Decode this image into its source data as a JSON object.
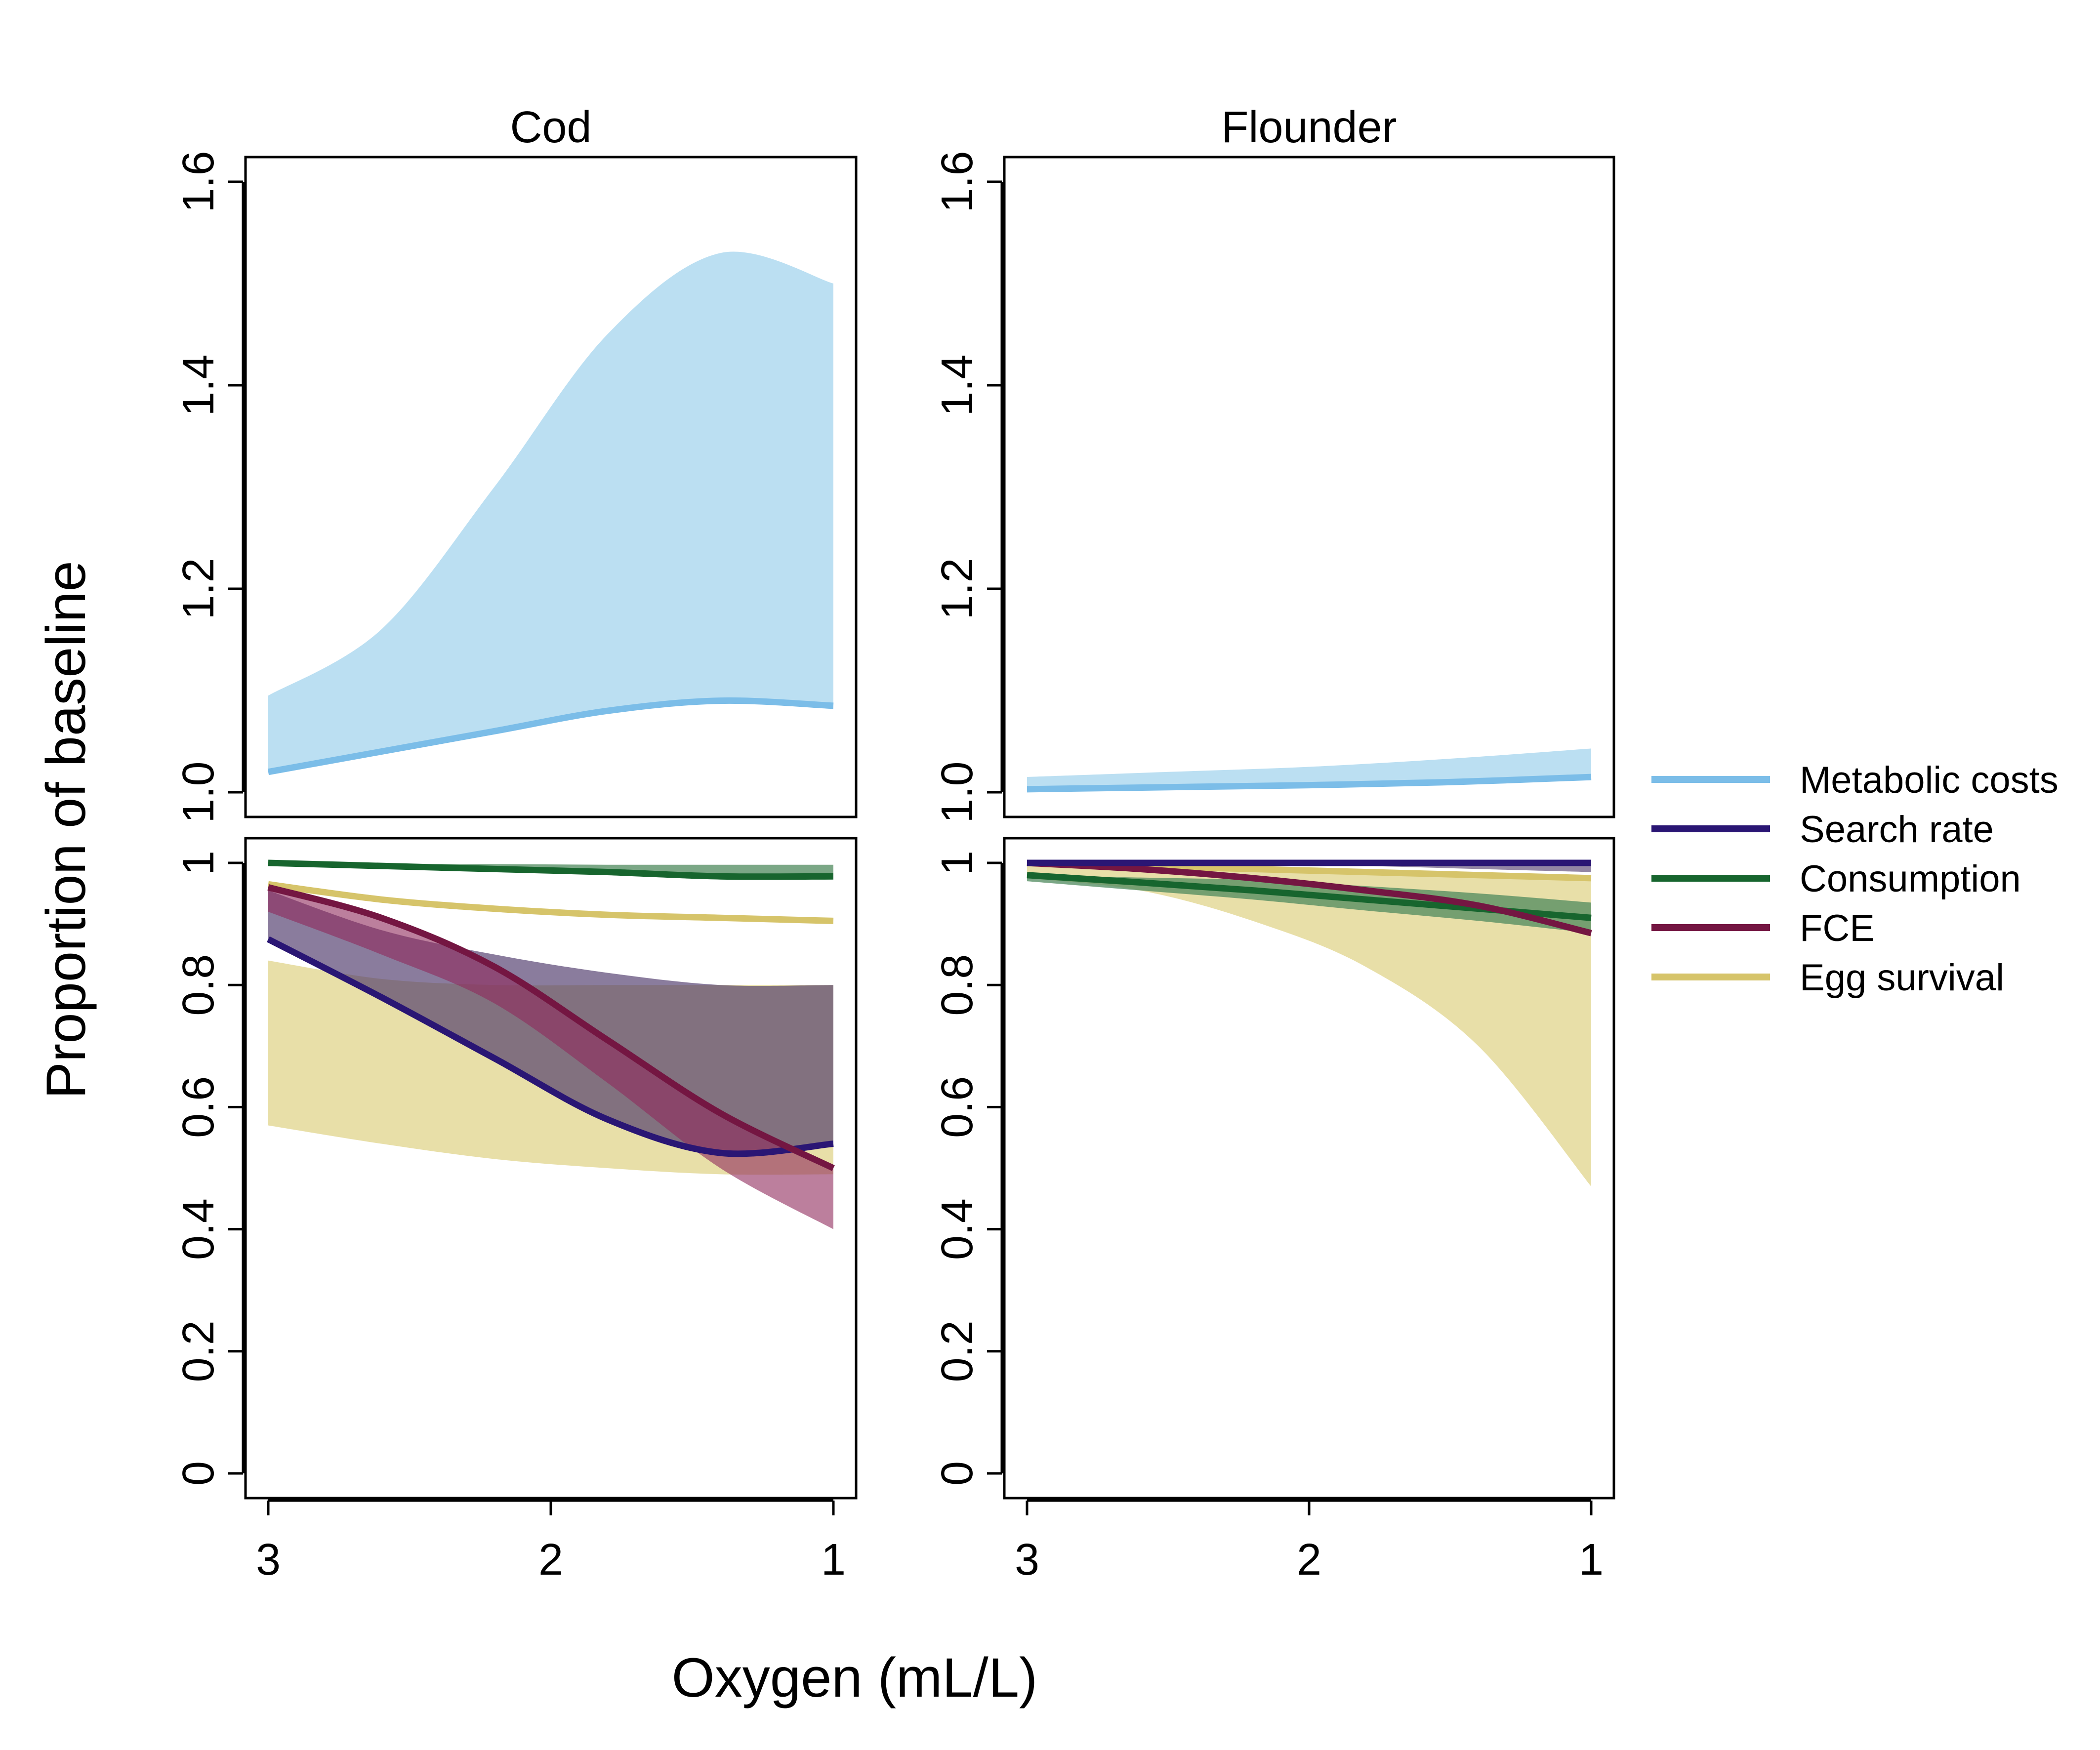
{
  "figure": {
    "xlabel": "Oxygen (mL/L)",
    "ylabel": "Proportion of baseline"
  },
  "legend": {
    "position": "right",
    "items": [
      {
        "label": "Metabolic costs",
        "color": "#7bbde8"
      },
      {
        "label": "Search rate",
        "color": "#2a1674"
      },
      {
        "label": "Consumption",
        "color": "#17652e"
      },
      {
        "label": "FCE",
        "color": "#741642"
      },
      {
        "label": "Egg survival",
        "color": "#d6c46a"
      }
    ]
  },
  "chart_data": [
    {
      "type": "line",
      "title": "Cod",
      "row": "top",
      "xlim": [
        3,
        1
      ],
      "ylim": [
        1.0,
        1.6
      ],
      "yticks": [
        1.0,
        1.2,
        1.4,
        1.6
      ],
      "ytick_labels": [
        "1.0",
        "1.2",
        "1.4",
        "1.6"
      ],
      "xticks": [
        3,
        2,
        1
      ],
      "xtick_labels": [],
      "x": [
        3,
        2.6,
        2.2,
        1.8,
        1.4,
        1.0
      ],
      "series": [
        {
          "name": "Metabolic costs",
          "color": "#7bbde8",
          "band_color": "#bbdff2",
          "band_opacity": 1.0,
          "values": [
            1.02,
            1.04,
            1.06,
            1.08,
            1.09,
            1.085
          ],
          "lower": [
            1.02,
            1.04,
            1.06,
            1.08,
            1.09,
            1.085
          ],
          "upper": [
            1.095,
            1.16,
            1.3,
            1.45,
            1.53,
            1.5
          ]
        }
      ]
    },
    {
      "type": "line",
      "title": "Flounder",
      "row": "top",
      "xlim": [
        3,
        1
      ],
      "ylim": [
        1.0,
        1.6
      ],
      "yticks": [
        1.0,
        1.2,
        1.4,
        1.6
      ],
      "ytick_labels": [
        "1.0",
        "1.2",
        "1.4",
        "1.6"
      ],
      "xticks": [
        3,
        2,
        1
      ],
      "xtick_labels": [],
      "x": [
        3,
        2.5,
        2.0,
        1.5,
        1.0
      ],
      "series": [
        {
          "name": "Metabolic costs",
          "color": "#7bbde8",
          "band_color": "#bbdff2",
          "band_opacity": 1.0,
          "values": [
            1.003,
            1.005,
            1.007,
            1.01,
            1.015
          ],
          "lower": [
            1.003,
            1.005,
            1.007,
            1.01,
            1.015
          ],
          "upper": [
            1.015,
            1.02,
            1.025,
            1.033,
            1.043
          ]
        }
      ]
    },
    {
      "type": "line",
      "title": "",
      "row": "bottom",
      "xlim": [
        3,
        1
      ],
      "ylim": [
        0,
        1
      ],
      "yticks": [
        0,
        0.2,
        0.4,
        0.6,
        0.8,
        1
      ],
      "ytick_labels": [
        "0",
        "0.2",
        "0.4",
        "0.6",
        "0.8",
        "1"
      ],
      "xticks": [
        3,
        2,
        1
      ],
      "xtick_labels": [
        "3",
        "2",
        "1"
      ],
      "x": [
        3,
        2.6,
        2.2,
        1.8,
        1.4,
        1.0
      ],
      "series": [
        {
          "name": "Egg survival",
          "color": "#d6c46a",
          "band_color": "#e8dfa8",
          "band_opacity": 1.0,
          "values": [
            0.965,
            0.94,
            0.925,
            0.915,
            0.91,
            0.905
          ],
          "lower": [
            0.57,
            0.54,
            0.515,
            0.5,
            0.49,
            0.49
          ],
          "upper": [
            0.84,
            0.81,
            0.8,
            0.8,
            0.8,
            0.8
          ]
        },
        {
          "name": "Search rate",
          "color": "#2a1674",
          "band_color": "#4b3568",
          "band_opacity": 0.65,
          "values": [
            0.875,
            0.78,
            0.68,
            0.58,
            0.525,
            0.54
          ],
          "lower": [
            0.875,
            0.78,
            0.68,
            0.58,
            0.525,
            0.54
          ],
          "upper": [
            0.955,
            0.89,
            0.85,
            0.82,
            0.8,
            0.8
          ]
        },
        {
          "name": "FCE",
          "color": "#741642",
          "band_color": "#8f2a5c",
          "band_opacity": 0.6,
          "values": [
            0.96,
            0.91,
            0.83,
            0.71,
            0.59,
            0.5
          ],
          "lower": [
            0.92,
            0.85,
            0.77,
            0.64,
            0.5,
            0.4
          ],
          "upper": [
            0.96,
            0.91,
            0.83,
            0.71,
            0.59,
            0.5
          ]
        },
        {
          "name": "Consumption",
          "color": "#17652e",
          "band_color": "#4f8a5e",
          "band_opacity": 0.75,
          "values": [
            1.0,
            0.995,
            0.99,
            0.985,
            0.978,
            0.978
          ],
          "lower": [
            1.0,
            0.995,
            0.99,
            0.985,
            0.978,
            0.978
          ],
          "upper": [
            1.0,
            0.998,
            0.998,
            0.997,
            0.997,
            0.997
          ]
        }
      ]
    },
    {
      "type": "line",
      "title": "",
      "row": "bottom",
      "xlim": [
        3,
        1
      ],
      "ylim": [
        0,
        1
      ],
      "yticks": [
        0,
        0.2,
        0.4,
        0.6,
        0.8,
        1
      ],
      "ytick_labels": [
        "0",
        "0.2",
        "0.4",
        "0.6",
        "0.8",
        "1"
      ],
      "xticks": [
        3,
        2,
        1
      ],
      "xtick_labels": [
        "3",
        "2",
        "1"
      ],
      "x": [
        3,
        2.6,
        2.2,
        1.8,
        1.4,
        1.0
      ],
      "series": [
        {
          "name": "Egg survival",
          "color": "#d6c46a",
          "band_color": "#e8dfa8",
          "band_opacity": 1.0,
          "values": [
            1.0,
            0.995,
            0.99,
            0.985,
            0.98,
            0.975
          ],
          "lower": [
            0.975,
            0.955,
            0.905,
            0.83,
            0.7,
            0.47
          ],
          "upper": [
            1.0,
            0.995,
            0.99,
            0.985,
            0.98,
            0.975
          ]
        },
        {
          "name": "Consumption",
          "color": "#17652e",
          "band_color": "#4f8a5e",
          "band_opacity": 0.75,
          "values": [
            0.98,
            0.968,
            0.955,
            0.94,
            0.925,
            0.91
          ],
          "lower": [
            0.97,
            0.955,
            0.94,
            0.922,
            0.905,
            0.885
          ],
          "upper": [
            0.98,
            0.976,
            0.972,
            0.962,
            0.95,
            0.935
          ]
        },
        {
          "name": "FCE",
          "color": "#741642",
          "band_color": "#8f2a5c",
          "band_opacity": 0.0,
          "values": [
            1.0,
            0.99,
            0.975,
            0.955,
            0.93,
            0.885
          ],
          "lower": [
            1.0,
            0.99,
            0.975,
            0.955,
            0.93,
            0.885
          ],
          "upper": [
            1.0,
            0.99,
            0.975,
            0.955,
            0.93,
            0.885
          ]
        },
        {
          "name": "Search rate",
          "color": "#2a1674",
          "band_color": "#4b3568",
          "band_opacity": 0.6,
          "values": [
            1.0,
            1.0,
            1.0,
            1.0,
            1.0,
            1.0
          ],
          "lower": [
            1.0,
            1.0,
            0.998,
            0.995,
            0.99,
            0.985
          ],
          "upper": [
            1.0,
            1.0,
            1.0,
            1.0,
            1.0,
            1.0
          ]
        }
      ]
    }
  ]
}
